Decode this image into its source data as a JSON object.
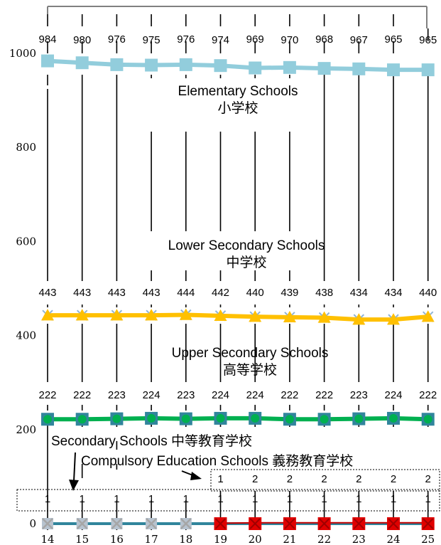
{
  "chart_data": {
    "type": "line",
    "title": "",
    "xlabel": "",
    "ylabel": "",
    "x": [
      "14",
      "15",
      "16",
      "17",
      "18",
      "19",
      "20",
      "21",
      "22",
      "23",
      "24",
      "25"
    ],
    "y_ticks": [
      "0",
      "200",
      "400",
      "600",
      "800",
      "1000"
    ],
    "ylim": [
      0,
      1000
    ],
    "grid": false,
    "series": [
      {
        "key": "elementary",
        "label_en": "Elementary Schools",
        "label_ja": "小学校",
        "values": [
          984,
          980,
          976,
          975,
          976,
          974,
          969,
          970,
          968,
          967,
          965,
          965
        ],
        "line_color": "#92CDDC",
        "marker": "square",
        "marker_color": "#92CDDC"
      },
      {
        "key": "lower_secondary",
        "label_en": "Lower Secondary Schools",
        "label_ja": "中学校",
        "values": [
          443,
          443,
          443,
          443,
          444,
          442,
          440,
          439,
          438,
          434,
          434,
          440
        ],
        "line_color": "#8FB4D8",
        "marker": "x",
        "marker_color": "#8FB4D8"
      },
      {
        "key": "upper_secondary",
        "label_en": "Upper Secondary Schools",
        "label_ja": "高等学校",
        "values": [
          222,
          222,
          223,
          224,
          223,
          224,
          224,
          222,
          222,
          223,
          224,
          222
        ],
        "line_color": "#FFC000",
        "marker": "triangle",
        "marker_color": "#FFC000"
      },
      {
        "key": "secondary",
        "label_en": "Secondary Schools",
        "label_ja": "中等教育学校",
        "label_text": "Secondary Schools 中等教育学校",
        "values": [
          1,
          1,
          1,
          1,
          1,
          1,
          1,
          1,
          1,
          1,
          1,
          1
        ],
        "line_color": "#31859C",
        "marker": "x",
        "marker_color": "#A6A6A6"
      },
      {
        "key": "compulsory",
        "label_en": "Compulsory Education Schools",
        "label_ja": "義務教育学校",
        "label_text": "Compulsory Education Schools 義務教育学校",
        "values": [
          null,
          null,
          null,
          null,
          null,
          1,
          2,
          2,
          2,
          2,
          2,
          2
        ],
        "line_color": "#C00000",
        "marker": "x",
        "marker_color": "#E00000"
      }
    ],
    "upper_secondary_extra": {
      "line_color": "#00B050",
      "marker_color": "#31859C"
    }
  }
}
